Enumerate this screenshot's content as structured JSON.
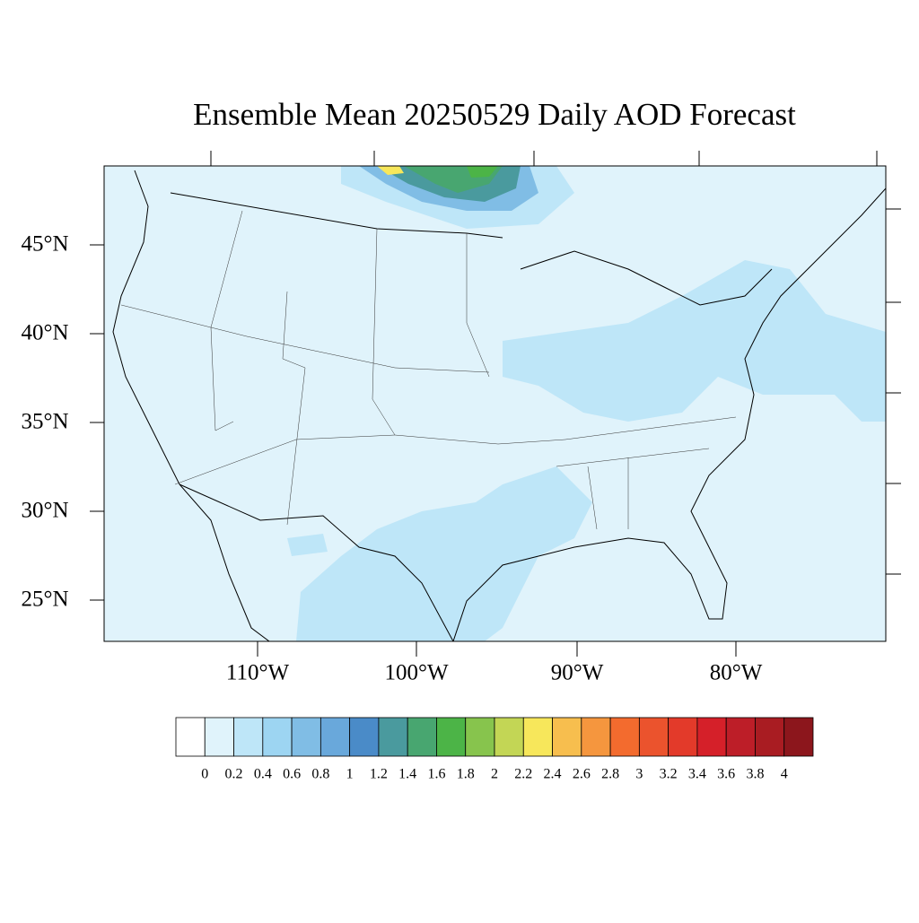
{
  "title": "Ensemble Mean 20250529 Daily AOD Forecast",
  "map": {
    "lat_labels": [
      "45°N",
      "40°N",
      "35°N",
      "30°N",
      "25°N"
    ],
    "lon_labels": [
      "110°W",
      "100°W",
      "90°W",
      "80°W"
    ]
  },
  "colorbar": {
    "levels": [
      0,
      0.2,
      0.4,
      0.6,
      0.8,
      1,
      1.2,
      1.4,
      1.6,
      1.8,
      2,
      2.2,
      2.4,
      2.6,
      2.8,
      3,
      3.2,
      3.4,
      3.6,
      3.8,
      4
    ],
    "colors": [
      "#ffffff",
      "#e0f3fb",
      "#bee6f8",
      "#9dd5f2",
      "#80bde5",
      "#69a8db",
      "#4a8bc8",
      "#4a9a9e",
      "#48a670",
      "#4cb447",
      "#87c44d",
      "#c3d655",
      "#f7e75b",
      "#f7be4e",
      "#f5963e",
      "#f36b2e",
      "#eb532d",
      "#e33a2a",
      "#d52029",
      "#bd1e28",
      "#a91c22",
      "#8c161c"
    ]
  }
}
